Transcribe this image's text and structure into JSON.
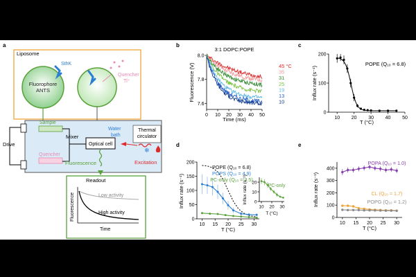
{
  "panel_labels": {
    "a": "a",
    "b": "b",
    "c": "c",
    "d": "d",
    "e": "e"
  },
  "panel_a": {
    "liposome_title": "Liposome",
    "sthk": "SthK",
    "fluorophore_line1": "Fluorophore",
    "fluorophore_line2": "ANTS",
    "quencher_line1": "Quencher",
    "quencher_line2": "Tl⁺",
    "sample": "Sample",
    "quencher": "Quencher",
    "mixer": "Mixer",
    "drive": "Drive",
    "optical_cell": "Optical cell",
    "water_bath_line1": "Water",
    "water_bath_line2": "bath",
    "thermal_line1": "Thermal",
    "thermal_line2": "circulator",
    "excitation": "Excitation",
    "fluorescence": "Fluorescence",
    "readout_title": "Readout",
    "low_activity": "Low activity",
    "high_activity": "High activity",
    "readout_ylabel": "Fluorescence",
    "readout_xlabel": "Time",
    "colors": {
      "orange": "#f0a33a",
      "green": "#58a13a",
      "pink": "#e98ab4",
      "blue": "#2a7fd4",
      "red": "#e0292b"
    }
  },
  "chart_data": [
    {
      "id": "b",
      "type": "line",
      "title": "3:1 DOPC:POPE",
      "xlabel": "Time (ms)",
      "ylabel": "Fluorescence (V)",
      "xlim": [
        0,
        50
      ],
      "ylim": [
        7.55,
        8.0
      ],
      "xticks": [
        "0",
        "10",
        "20",
        "30",
        "40",
        "50"
      ],
      "yticks": [
        "7.6",
        "7.8",
        "8.0"
      ],
      "series": [
        {
          "name": "45 °C",
          "color": "#e0292b",
          "start": 8.0,
          "end": 7.78,
          "tau": 30
        },
        {
          "name": "35",
          "color": "#f19a9b",
          "start": 8.0,
          "end": 7.77,
          "tau": 22
        },
        {
          "name": "31",
          "color": "#2f8a2f",
          "start": 8.0,
          "end": 7.74,
          "tau": 18
        },
        {
          "name": "25",
          "color": "#7cc246",
          "start": 8.0,
          "end": 7.69,
          "tau": 15
        },
        {
          "name": "19",
          "color": "#5fb7e5",
          "start": 8.0,
          "end": 7.64,
          "tau": 13
        },
        {
          "name": "13",
          "color": "#2a62c9",
          "start": 8.0,
          "end": 7.61,
          "tau": 12
        },
        {
          "name": "10",
          "color": "#123a8c",
          "start": 8.0,
          "end": 7.595,
          "tau": 11
        }
      ]
    },
    {
      "id": "c",
      "type": "scatter",
      "xlabel": "T (°C)",
      "ylabel": "Influx rate (s⁻¹)",
      "legend": "POPE (Q₁₀ = 6.8)",
      "xlim": [
        5,
        50
      ],
      "ylim": [
        0,
        200
      ],
      "xticks": [
        "10",
        "20",
        "30",
        "40",
        "50"
      ],
      "yticks": [
        "0",
        "100",
        "200"
      ],
      "x": [
        10,
        12,
        14,
        16,
        18,
        20,
        22,
        24,
        26,
        28,
        30,
        35,
        40,
        45
      ],
      "y": [
        185,
        188,
        180,
        150,
        100,
        50,
        22,
        12,
        8,
        7,
        6,
        5,
        5,
        5
      ],
      "err": [
        15,
        12,
        15,
        15,
        15,
        12,
        6,
        3,
        2,
        2,
        2,
        2,
        2,
        2
      ]
    },
    {
      "id": "d",
      "type": "line",
      "xlabel": "T (°C)",
      "ylabel": "Influx rate (s⁻¹)",
      "xlim": [
        8,
        32
      ],
      "ylim": [
        0,
        200
      ],
      "xticks": [
        "10",
        "15",
        "20",
        "25",
        "30"
      ],
      "yticks": [
        "0",
        "50",
        "100",
        "150",
        "200"
      ],
      "series": [
        {
          "name": "POPE (Q₁₀ = 6.8)",
          "color": "#111111",
          "dashed": true,
          "x": [
            10,
            12,
            14,
            16,
            18,
            20,
            22,
            24,
            26,
            28,
            30,
            31
          ],
          "y": [
            188,
            186,
            180,
            165,
            140,
            100,
            62,
            35,
            20,
            12,
            8,
            7
          ]
        },
        {
          "name": "POPS (Q₁₀ = 4.9)",
          "color": "#2a7fd4",
          "dashed": false,
          "x": [
            10,
            12,
            14,
            16,
            18,
            20,
            22,
            25,
            28,
            31
          ],
          "y": [
            122,
            118,
            112,
            95,
            72,
            48,
            30,
            18,
            15,
            14
          ],
          "err": [
            35,
            30,
            30,
            25,
            20,
            15,
            10,
            6,
            5,
            5
          ]
        },
        {
          "name": "PC-only (Q₁₀ = 3.5)",
          "color": "#58a13a",
          "dashed": false,
          "x": [
            10,
            13,
            16,
            19,
            22,
            25,
            28,
            31
          ],
          "y": [
            20,
            18,
            17,
            13,
            10,
            8,
            6,
            4
          ],
          "err": [
            4,
            4,
            3,
            3,
            2,
            2,
            2,
            2
          ]
        }
      ],
      "inset": {
        "label": "PC-only",
        "color": "#58a13a",
        "xlabel": "T (°C)",
        "ylabel": "Influx rate (s⁻¹)",
        "xlim": [
          8,
          32
        ],
        "ylim": [
          0,
          25
        ],
        "xticks": [
          "10",
          "20",
          "30"
        ],
        "yticks": [
          "0",
          "10",
          "20"
        ],
        "x": [
          10,
          13,
          16,
          19,
          22,
          25,
          28,
          31
        ],
        "y": [
          21,
          20,
          17,
          13,
          10,
          7,
          5,
          4
        ],
        "err": [
          3,
          3,
          3,
          2,
          2,
          2,
          1,
          1
        ]
      }
    },
    {
      "id": "e",
      "type": "line",
      "xlabel": "T (°C)",
      "ylabel": "Influx rate (s⁻¹)",
      "xlim": [
        8,
        32
      ],
      "ylim": [
        0,
        450
      ],
      "xticks": [
        "10",
        "15",
        "20",
        "25",
        "30"
      ],
      "yticks": [
        "0",
        "100",
        "200",
        "300",
        "400"
      ],
      "series": [
        {
          "name": "POPA (Q₁₀ = 1.0)",
          "color": "#8a3fb0",
          "x": [
            10,
            12,
            14,
            16,
            18,
            20,
            22,
            24,
            26,
            28,
            30
          ],
          "y": [
            368,
            385,
            385,
            395,
            402,
            410,
            400,
            395,
            385,
            390,
            380
          ],
          "err": [
            25,
            20,
            20,
            20,
            20,
            20,
            20,
            20,
            20,
            20,
            20
          ]
        },
        {
          "name": "CL (Q₁₀ = 1.7)",
          "color": "#f0a33a",
          "x": [
            10,
            12,
            14,
            16,
            18,
            20,
            22,
            24,
            26,
            28,
            30
          ],
          "y": [
            95,
            95,
            90,
            75,
            70,
            65,
            62,
            60,
            58,
            58,
            55
          ],
          "err": [
            8,
            8,
            8,
            6,
            6,
            5,
            5,
            5,
            5,
            5,
            5
          ]
        },
        {
          "name": "POPG (Q₁₀ = 1.2)",
          "color": "#8a8a8a",
          "x": [
            10,
            12,
            14,
            16,
            18,
            20,
            22,
            24,
            26,
            28,
            30
          ],
          "y": [
            62,
            60,
            60,
            60,
            58,
            58,
            57,
            56,
            55,
            55,
            54
          ],
          "err": [
            5,
            5,
            5,
            5,
            5,
            5,
            5,
            5,
            5,
            5,
            5
          ]
        }
      ]
    }
  ]
}
